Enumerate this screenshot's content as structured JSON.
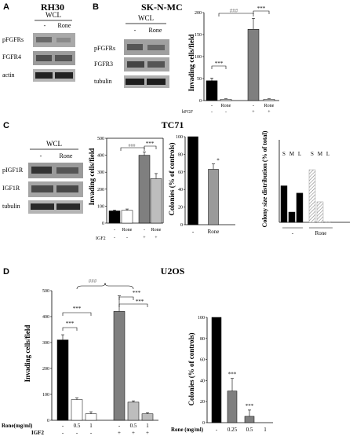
{
  "panels": {
    "A": {
      "letter": "A",
      "title": "RH30",
      "wcl": "WCL",
      "lanes": [
        "-",
        "Rone"
      ],
      "rows": [
        "pFGFRs",
        "FGFR4",
        "actin"
      ]
    },
    "B": {
      "letter": "B",
      "title": "SK-N-MC",
      "wcl": "WCL",
      "lanes": [
        "-",
        "Rone"
      ],
      "rows": [
        "pFGFRs",
        "FGFR3",
        "tubulin"
      ],
      "chart": {
        "ylabel": "Invading cells/field",
        "yticks": [
          "0",
          "50",
          "100",
          "150",
          "200"
        ],
        "rone_row": [
          "-",
          "Rone",
          "-",
          "Rone"
        ],
        "bfgf_label": "bFGF",
        "bfgf_row": [
          "-",
          "-",
          "+",
          "+"
        ],
        "sig_hash": "###",
        "sig_a": "***",
        "sig_b": "***",
        "sig_c": "***"
      }
    },
    "C": {
      "letter": "C",
      "title": "TC71",
      "wcl": "WCL",
      "lanes": [
        "-",
        "Rone"
      ],
      "rows": [
        "pIGF1R",
        "IGF1R",
        "tubulin"
      ],
      "inv": {
        "ylabel": "Invading cells/field",
        "yticks": [
          "0",
          "100",
          "200",
          "300",
          "400",
          "500"
        ],
        "rone_row": [
          "-",
          "Rone",
          "-",
          "Rone"
        ],
        "igf2_label": "IGF2",
        "igf2_row": [
          "-",
          "-",
          "+",
          "+"
        ],
        "sig_hash": "###",
        "sig_star": "***"
      },
      "col": {
        "ylabel": "Colonies (% of controls)",
        "yticks": [
          "0",
          "20",
          "40",
          "60",
          "80",
          "100"
        ],
        "xlabels": [
          "-",
          "Rone"
        ],
        "sig": "*"
      },
      "size": {
        "ylabel": "Colony size distribution (% of total)",
        "slm_a": [
          "S",
          "M",
          "L"
        ],
        "slm_b": [
          "S",
          "M",
          "L"
        ],
        "xlabels": [
          "-",
          "Rone"
        ]
      }
    },
    "D": {
      "letter": "D",
      "title": "U2OS",
      "inv": {
        "ylabel": "Invading cells/field",
        "yticks": [
          "0",
          "100",
          "200",
          "300",
          "400",
          "500"
        ],
        "rone_label": "Rone(mg/ml)",
        "rone_row": [
          "-",
          "0.5",
          "1",
          "-",
          "0.5",
          "1"
        ],
        "igf2_label": "IGF2",
        "igf2_row": [
          "-",
          "-",
          "-",
          "+",
          "+",
          "+"
        ],
        "sig_hash": "###",
        "sig_star": "***"
      },
      "col": {
        "ylabel": "Colonies (% of controls)",
        "yticks": [
          "0",
          "20",
          "40",
          "60",
          "80",
          "100"
        ],
        "rone_label": "Rone (mg/ml)",
        "rone_row": [
          "-",
          "0.25",
          "0.5",
          "1"
        ],
        "sig": "***"
      }
    }
  },
  "chart_data": [
    {
      "type": "bar",
      "categories": [
        "-/-",
        "Rone/-",
        "-/bFGF",
        "Rone/bFGF"
      ],
      "values": [
        45,
        3,
        162,
        3
      ],
      "errors": [
        6,
        1,
        25,
        1
      ],
      "ylabel": "Invading cells/field",
      "ylim": [
        0,
        200
      ]
    },
    {
      "type": "bar",
      "categories": [
        "-/-",
        "Rone/-",
        "-/IGF2",
        "Rone/IGF2"
      ],
      "values": [
        72,
        75,
        400,
        262
      ],
      "errors": [
        5,
        8,
        20,
        30
      ],
      "ylabel": "Invading cells/field",
      "ylim": [
        0,
        500
      ]
    },
    {
      "type": "bar",
      "categories": [
        "-",
        "Rone"
      ],
      "values": [
        100,
        63
      ],
      "errors": [
        0,
        6
      ],
      "ylabel": "Colonies (% of controls)",
      "ylim": [
        0,
        100
      ]
    },
    {
      "type": "bar",
      "categories": [
        "-",
        "Rone"
      ],
      "series": [
        {
          "name": "S",
          "values": [
            50,
            72
          ]
        },
        {
          "name": "M",
          "values": [
            14,
            28
          ]
        },
        {
          "name": "L",
          "values": [
            40,
            1
          ]
        }
      ],
      "ylabel": "Colony size distribution (% of total)",
      "ylim": [
        0,
        100
      ]
    },
    {
      "type": "bar",
      "categories": [
        "-/-",
        "0.5/-",
        "1/-",
        "-/IGF2",
        "0.5/IGF2",
        "1/IGF2"
      ],
      "values": [
        310,
        80,
        25,
        420,
        70,
        25
      ],
      "errors": [
        20,
        6,
        8,
        60,
        5,
        4
      ],
      "ylabel": "Invading cells/field",
      "ylim": [
        0,
        500
      ]
    },
    {
      "type": "bar",
      "categories": [
        "-",
        "0.25",
        "0.5",
        "1"
      ],
      "values": [
        100,
        30,
        6,
        0
      ],
      "errors": [
        0,
        12,
        6,
        0
      ],
      "ylabel": "Colonies (% of controls)",
      "ylim": [
        0,
        100
      ]
    }
  ]
}
